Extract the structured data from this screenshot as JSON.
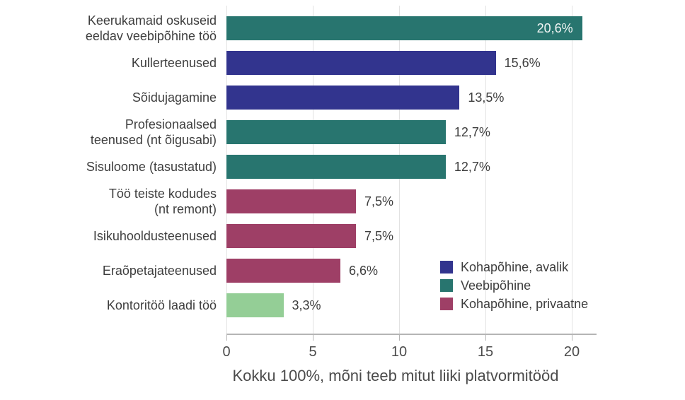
{
  "chart_data": {
    "type": "bar",
    "orientation": "horizontal",
    "caption": "Kokku 100%, mõni teeb mitut liiki platvormitööd",
    "x_axis": {
      "min": 0,
      "max": 21.4,
      "ticks": [
        0,
        5,
        10,
        15,
        20
      ]
    },
    "grid": true,
    "legend_position": "inside-bottom-right",
    "categories": [
      "Keerukamaid oskuseid\neeldav veebipõhine töö",
      "Kullerteenused",
      "Sõidujagamine",
      "Profesionaalsed\nteenused (nt õigusabi)",
      "Sisuloome (tasustatud)",
      "Töö teiste kodudes\n(nt remont)",
      "Isikuhooldusteenused",
      "Eraõpetajateenused",
      "Kontoritöö laadi töö"
    ],
    "values": [
      20.6,
      15.6,
      13.5,
      12.7,
      12.7,
      7.5,
      7.5,
      6.6,
      3.3
    ],
    "bars": [
      {
        "label": "Keerukamaid oskuseid\neeldav veebipõhine töö",
        "value": 20.6,
        "value_label": "20,6%",
        "color": "#28756f",
        "value_label_inside": true
      },
      {
        "label": "Kullerteenused",
        "value": 15.6,
        "value_label": "15,6%",
        "color": "#32348e",
        "value_label_inside": false
      },
      {
        "label": "Sõidujagamine",
        "value": 13.5,
        "value_label": "13,5%",
        "color": "#32348e",
        "value_label_inside": false
      },
      {
        "label": "Profesionaalsed\nteenused (nt õigusabi)",
        "value": 12.7,
        "value_label": "12,7%",
        "color": "#28756f",
        "value_label_inside": false
      },
      {
        "label": "Sisuloome (tasustatud)",
        "value": 12.7,
        "value_label": "12,7%",
        "color": "#28756f",
        "value_label_inside": false
      },
      {
        "label": "Töö teiste kodudes\n(nt remont)",
        "value": 7.5,
        "value_label": "7,5%",
        "color": "#9e3f66",
        "value_label_inside": false
      },
      {
        "label": "Isikuhooldusteenused",
        "value": 7.5,
        "value_label": "7,5%",
        "color": "#9e3f66",
        "value_label_inside": false
      },
      {
        "label": "Eraõpetajateenused",
        "value": 6.6,
        "value_label": "6,6%",
        "color": "#9e3f66",
        "value_label_inside": false
      },
      {
        "label": "Kontoritöö laadi töö",
        "value": 3.3,
        "value_label": "3,3%",
        "color": "#94ce96",
        "value_label_inside": false
      }
    ],
    "legend": [
      {
        "label": "Kohapõhine, avalik",
        "color": "#32348e"
      },
      {
        "label": "Veebipõhine",
        "color": "#28756f"
      },
      {
        "label": "Kohapõhine, privaatne",
        "color": "#9e3f66"
      }
    ],
    "colors": {
      "kohapohine_avalik": "#32348e",
      "veebipohine": "#28756f",
      "kohapohine_privaatne": "#9e3f66",
      "kontoritoo": "#94ce96"
    }
  }
}
